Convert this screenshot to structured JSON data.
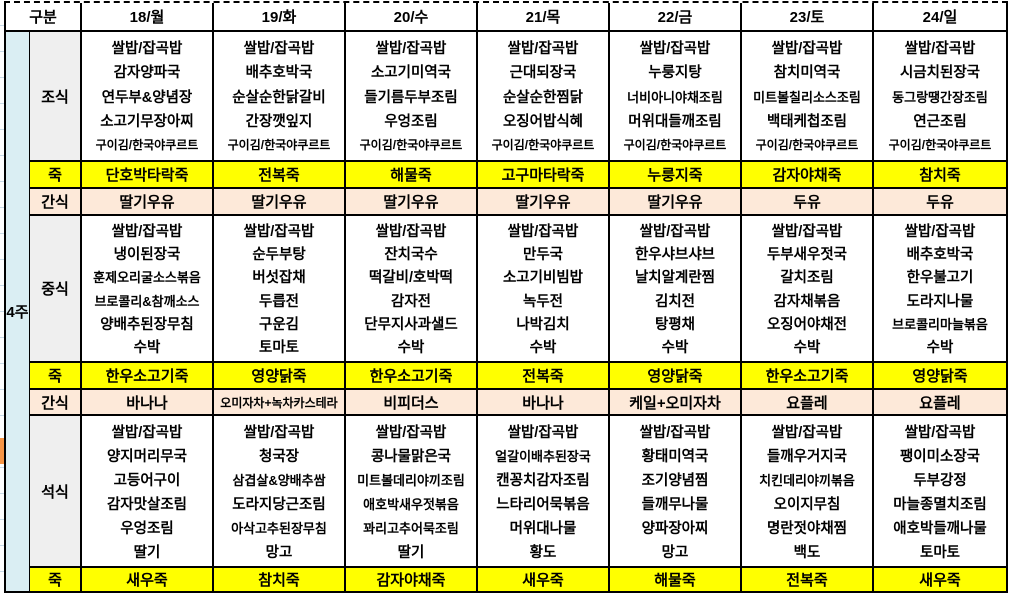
{
  "header": {
    "category": "구분",
    "days": [
      "18/월",
      "19/화",
      "20/수",
      "21/목",
      "22/금",
      "23/토",
      "24/일"
    ]
  },
  "week_label": "4주",
  "row_labels": {
    "breakfast": "조식",
    "porridge": "죽",
    "snack": "간식",
    "lunch": "중식",
    "dinner": "석식"
  },
  "days": [
    {
      "date": "18/월",
      "breakfast": [
        "쌀밥/잡곡밥",
        "감자양파국",
        "연두부&양념장",
        "소고기무장아찌",
        "구이김/한국야쿠르트"
      ],
      "porridge1": "단호박타락죽",
      "snack1": "딸기우유",
      "lunch": [
        "쌀밥/잡곡밥",
        "냉이된장국",
        "훈제오리굴소스볶음",
        "브로콜리&참깨소스",
        "양배추된장무침",
        "수박"
      ],
      "porridge2": "한우소고기죽",
      "snack2": "바나나",
      "dinner": [
        "쌀밥/잡곡밥",
        "양지머리무국",
        "고등어구이",
        "감자맛살조림",
        "우엉조림",
        "딸기"
      ],
      "porridge3": "새우죽"
    },
    {
      "date": "19/화",
      "breakfast": [
        "쌀밥/잡곡밥",
        "배추호박국",
        "순살순한닭갈비",
        "간장깻잎지",
        "구이김/한국야쿠르트"
      ],
      "porridge1": "전복죽",
      "snack1": "딸기우유",
      "lunch": [
        "쌀밥/잡곡밥",
        "순두부탕",
        "버섯잡채",
        "두릅전",
        "구운김",
        "토마토"
      ],
      "porridge2": "영양닭죽",
      "snack2": "오미자차+녹차카스테라",
      "dinner": [
        "쌀밥/잡곡밥",
        "청국장",
        "삼겹살&양배추쌈",
        "도라지당근조림",
        "아삭고추된장무침",
        "망고"
      ],
      "porridge3": "참치죽"
    },
    {
      "date": "20/수",
      "breakfast": [
        "쌀밥/잡곡밥",
        "소고기미역국",
        "들기름두부조림",
        "우엉조림",
        "구이김/한국야쿠르트"
      ],
      "porridge1": "해물죽",
      "snack1": "딸기우유",
      "lunch": [
        "쌀밥/잡곡밥",
        "잔치국수",
        "떡갈비/호박떡",
        "감자전",
        "단무지사과샐드",
        "수박"
      ],
      "porridge2": "한우소고기죽",
      "snack2": "비피더스",
      "dinner": [
        "쌀밥/잡곡밥",
        "콩나물맑은국",
        "미트볼데리야끼조림",
        "애호박새우젓볶음",
        "꽈리고추어묵조림",
        "딸기"
      ],
      "porridge3": "감자야채죽"
    },
    {
      "date": "21/목",
      "breakfast": [
        "쌀밥/잡곡밥",
        "근대되장국",
        "순살순한찜닭",
        "오징어밥식혜",
        "구이김/한국야쿠르트"
      ],
      "porridge1": "고구마타락죽",
      "snack1": "딸기우유",
      "lunch": [
        "쌀밥/잡곡밥",
        "만두국",
        "소고기비빔밥",
        "녹두전",
        "나박김치",
        "수박"
      ],
      "porridge2": "전복죽",
      "snack2": "바나나",
      "dinner": [
        "쌀밥/잡곡밥",
        "얼갈이배추된장국",
        "캔꽁치감자조림",
        "느타리어묵볶음",
        "머위대나물",
        "황도"
      ],
      "porridge3": "새우죽"
    },
    {
      "date": "22/금",
      "breakfast": [
        "쌀밥/잡곡밥",
        "누룽지탕",
        "너비아니야채조림",
        "머위대들깨조림",
        "구이김/한국야쿠르트"
      ],
      "porridge1": "누룽지죽",
      "snack1": "딸기우유",
      "lunch": [
        "쌀밥/잡곡밥",
        "한우샤브샤브",
        "날치알계란찜",
        "김치전",
        "탕평채",
        "수박"
      ],
      "porridge2": "영양닭죽",
      "snack2": "케일+오미자차",
      "dinner": [
        "쌀밥/잡곡밥",
        "황태미역국",
        "조기양념찜",
        "들깨무나물",
        "양파장아찌",
        "망고"
      ],
      "porridge3": "해물죽"
    },
    {
      "date": "23/토",
      "breakfast": [
        "쌀밥/잡곡밥",
        "참치미역국",
        "미트볼칠리소스조림",
        "백태케첩조림",
        "구이김/한국야쿠르트"
      ],
      "porridge1": "감자야채죽",
      "snack1": "두유",
      "lunch": [
        "쌀밥/잡곡밥",
        "두부새우젓국",
        "갈치조림",
        "감자채볶음",
        "오징어야채전",
        "수박"
      ],
      "porridge2": "한우소고기죽",
      "snack2": "요플레",
      "dinner": [
        "쌀밥/잡곡밥",
        "들깨우거지국",
        "치킨데리야끼볶음",
        "오이지무침",
        "명란젓야채찜",
        "백도"
      ],
      "porridge3": "전복죽"
    },
    {
      "date": "24/일",
      "breakfast": [
        "쌀밥/잡곡밥",
        "시금치된장국",
        "동그랑땡간장조림",
        "연근조림",
        "구이김/한국야쿠르트"
      ],
      "porridge1": "참치죽",
      "snack1": "두유",
      "lunch": [
        "쌀밥/잡곡밥",
        "배추호박국",
        "한우불고기",
        "도라지나물",
        "브로콜리마늘볶음",
        "수박"
      ],
      "porridge2": "영양닭죽",
      "snack2": "요플레",
      "dinner": [
        "쌀밥/잡곡밥",
        "팽이미소장국",
        "두부강정",
        "마늘종멸치조림",
        "애호박들깨나물",
        "토마토"
      ],
      "porridge3": "새우죽"
    }
  ],
  "colors": {
    "porridge_row": "#ffff00",
    "snack_row": "#fde9d9",
    "week_column": "#daeef3",
    "label_column": "#efefef",
    "border": "#000000",
    "page_marker": "#f79646"
  }
}
